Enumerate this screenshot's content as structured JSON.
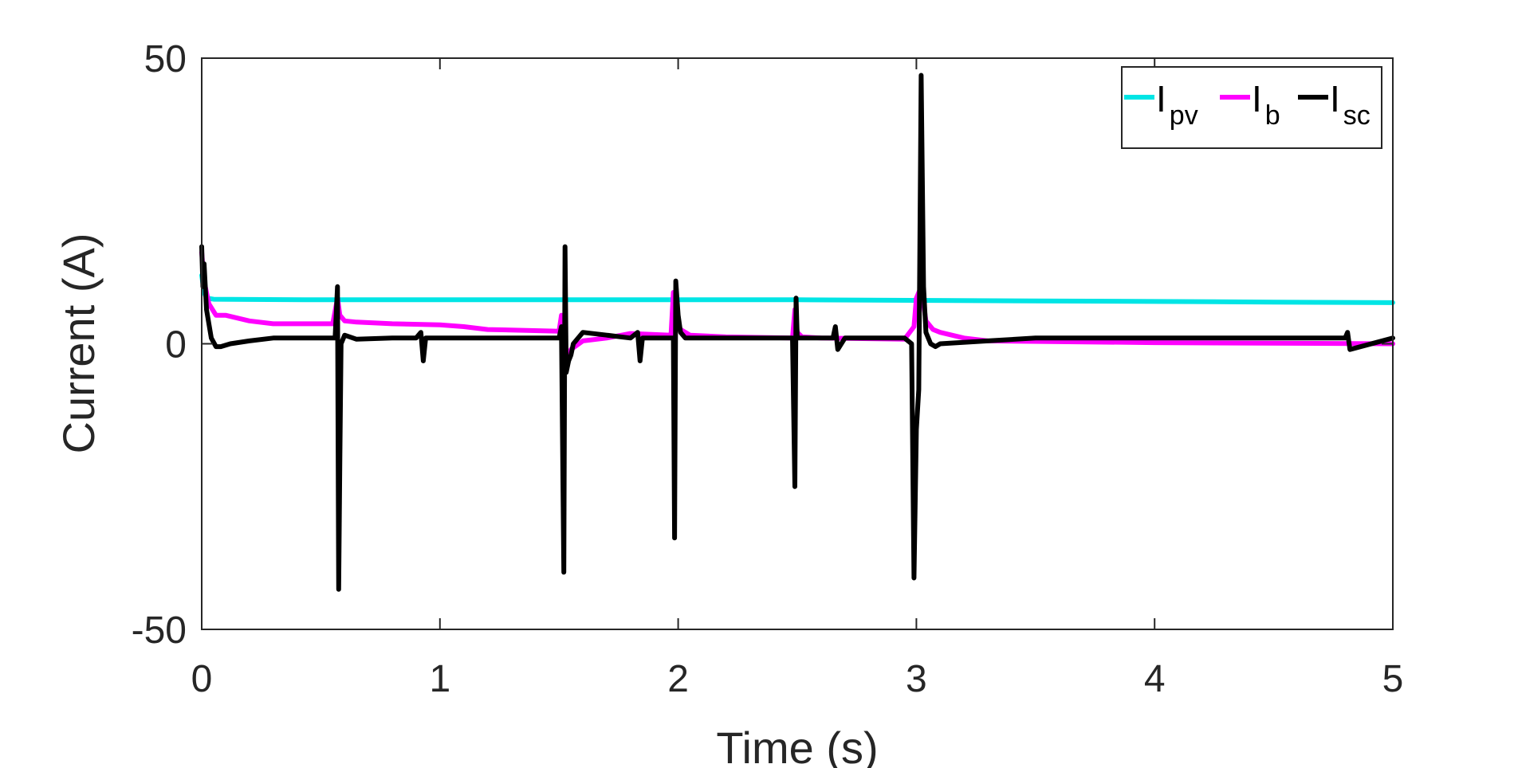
{
  "chart_data": {
    "type": "line",
    "xlabel": "Time (s)",
    "ylabel": "Current (A)",
    "xlim": [
      0,
      5
    ],
    "ylim": [
      -50,
      50
    ],
    "x_ticks": [
      "0",
      "1",
      "2",
      "3",
      "4",
      "5"
    ],
    "y_ticks": [
      "50",
      "0",
      "-50"
    ],
    "grid": false,
    "legend_position": "top-right",
    "series": [
      {
        "name": "I_pv",
        "legend_main": "I",
        "legend_sub": "pv",
        "color": "#00E5E5",
        "x": [
          0,
          0.01,
          0.02,
          0.05,
          0.5,
          1.0,
          1.5,
          2.0,
          2.5,
          3.0,
          3.5,
          4.0,
          4.5,
          5.0
        ],
        "y": [
          12,
          9,
          8,
          7.8,
          7.7,
          7.7,
          7.7,
          7.7,
          7.7,
          7.6,
          7.5,
          7.4,
          7.3,
          7.2
        ]
      },
      {
        "name": "I_b",
        "legend_main": "I",
        "legend_sub": "b",
        "color": "#FF00FF",
        "x": [
          0,
          0.01,
          0.03,
          0.06,
          0.1,
          0.2,
          0.3,
          0.55,
          0.57,
          0.58,
          0.6,
          0.65,
          0.8,
          1.0,
          1.1,
          1.2,
          1.5,
          1.51,
          1.52,
          1.53,
          1.55,
          1.6,
          1.7,
          1.8,
          1.97,
          1.98,
          1.99,
          2.01,
          2.05,
          2.2,
          2.48,
          2.49,
          2.5,
          2.52,
          2.6,
          2.95,
          2.99,
          3.0,
          3.02,
          3.04,
          3.07,
          3.1,
          3.2,
          3.3,
          4.0,
          5.0
        ],
        "y": [
          16,
          11,
          7,
          5,
          5,
          4,
          3.5,
          3.5,
          8,
          5,
          4,
          3.8,
          3.5,
          3.3,
          3,
          2.5,
          2.2,
          5,
          -3,
          -4,
          -1,
          0.5,
          1,
          1.8,
          1.5,
          9,
          4,
          2.5,
          1.5,
          1.2,
          1.0,
          6,
          2,
          1.2,
          1.0,
          0.8,
          3,
          8,
          10,
          4,
          2.5,
          2,
          1,
          0.5,
          0.2,
          0
        ]
      },
      {
        "name": "I_sc",
        "legend_main": "I",
        "legend_sub": "sc",
        "color": "#000000",
        "x": [
          0,
          0.005,
          0.01,
          0.02,
          0.04,
          0.06,
          0.08,
          0.12,
          0.2,
          0.3,
          0.5,
          0.56,
          0.57,
          0.575,
          0.58,
          0.585,
          0.6,
          0.65,
          0.8,
          0.9,
          0.92,
          0.93,
          0.94,
          1.0,
          1.5,
          1.51,
          1.52,
          1.525,
          1.53,
          1.54,
          1.55,
          1.56,
          1.6,
          1.7,
          1.8,
          1.83,
          1.84,
          1.85,
          1.98,
          1.985,
          1.99,
          2.0,
          2.01,
          2.03,
          2.06,
          2.2,
          2.48,
          2.49,
          2.495,
          2.5,
          2.505,
          2.52,
          2.6,
          2.65,
          2.66,
          2.67,
          2.7,
          2.95,
          2.98,
          2.99,
          3.0,
          3.01,
          3.02,
          3.03,
          3.04,
          3.06,
          3.08,
          3.1,
          3.3,
          3.5,
          4.0,
          4.5,
          4.8,
          4.81,
          4.82,
          5.0
        ],
        "y": [
          17,
          10,
          14,
          6,
          1,
          -0.5,
          -0.5,
          0,
          0.5,
          1,
          1,
          1,
          10,
          -43,
          -20,
          0,
          1.5,
          0.8,
          1,
          1,
          2,
          -3,
          1,
          1,
          1,
          3,
          -40,
          17,
          -5,
          -3,
          -2,
          0,
          2,
          1.5,
          1,
          2,
          -3,
          1,
          1,
          -34,
          11,
          5,
          2,
          1,
          1,
          1,
          1,
          -25,
          8,
          1,
          1,
          1,
          1,
          1,
          3,
          -1,
          1,
          1,
          0,
          -41,
          -15,
          -8,
          47,
          10,
          2,
          0,
          -0.5,
          0,
          0.5,
          1,
          1,
          1,
          1,
          2,
          -1,
          1
        ]
      }
    ]
  }
}
